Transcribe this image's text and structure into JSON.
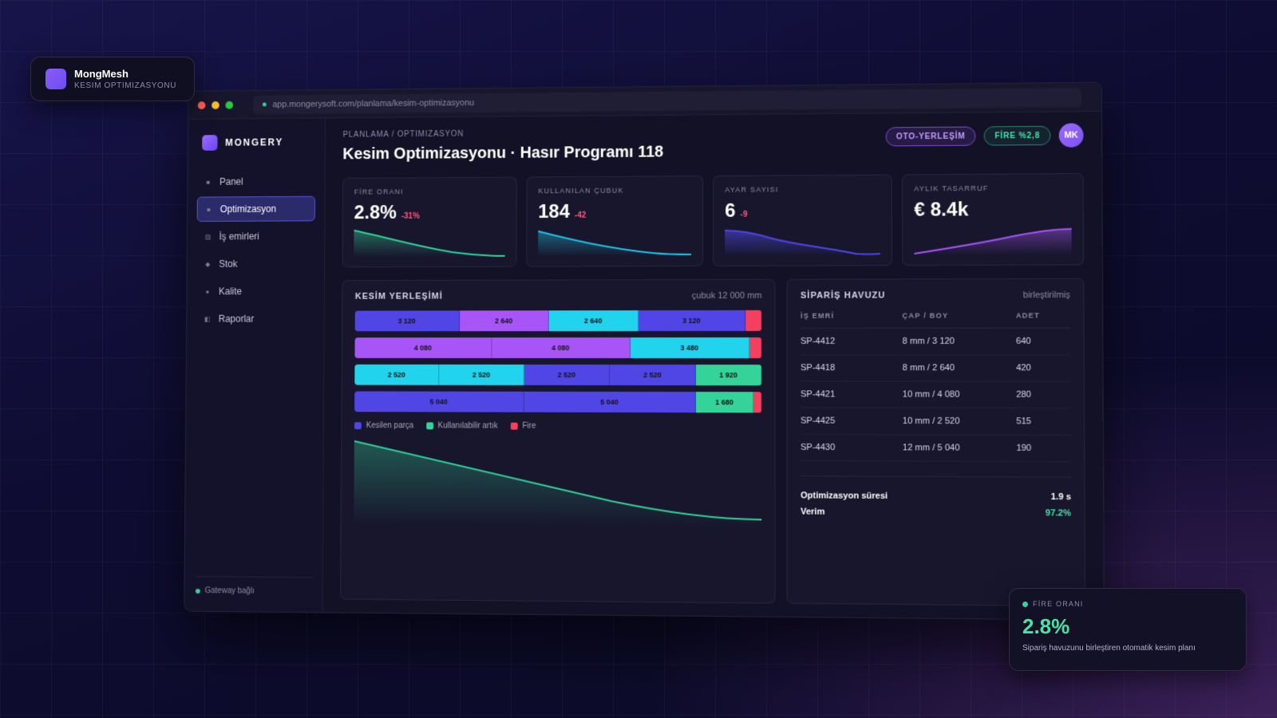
{
  "brand": {
    "name": "MongMesh",
    "subtitle": "KESIM OPTIMIZASYONU"
  },
  "window": {
    "url": "app.mongerysoft.com/planlama/kesim-optimizasyonu"
  },
  "sidebar": {
    "logo": "MONGERY",
    "items": [
      {
        "label": "Panel",
        "icon": "square-icon",
        "active": false
      },
      {
        "label": "Optimizasyon",
        "icon": "square-icon",
        "active": true
      },
      {
        "label": "İş emirleri",
        "icon": "list-icon",
        "active": false
      },
      {
        "label": "Stok",
        "icon": "diamond-icon",
        "active": false
      },
      {
        "label": "Kalite",
        "icon": "circle-icon",
        "active": false
      },
      {
        "label": "Raporlar",
        "icon": "report-icon",
        "active": false
      }
    ],
    "gateway": "Gateway bağlı"
  },
  "header": {
    "breadcrumb": [
      "PLANLAMA",
      "/",
      "OPTIMIZASYON"
    ],
    "title": "Kesim Optimizasyonu · Hasır Programı 118",
    "pill_auto": "OTO-YERLEŞİM",
    "pill_fire": "FİRE %2,8",
    "avatar": "MK"
  },
  "kpis": [
    {
      "label": "FİRE ORANI",
      "value": "2.8%",
      "delta": "-31%",
      "color": "#34d399"
    },
    {
      "label": "KULLANILAN ÇUBUK",
      "value": "184",
      "delta": "-42",
      "color": "#22c3e6"
    },
    {
      "label": "AYAR SAYISI",
      "value": "6",
      "delta": "-9",
      "color": "#5046e5"
    },
    {
      "label": "AYLIK TASARRUF",
      "value": "€ 8.4k",
      "delta": "",
      "color": "#a855f7"
    }
  ],
  "placement": {
    "title": "KESİM YERLEŞİMİ",
    "stock": "çubuk 12 000 mm",
    "rows": [
      [
        {
          "v": "3 120",
          "w": 3120,
          "c": "#4f46e5"
        },
        {
          "v": "2 640",
          "w": 2640,
          "c": "#a855f7"
        },
        {
          "v": "2 640",
          "w": 2640,
          "c": "#22d3ee"
        },
        {
          "v": "3 120",
          "w": 3120,
          "c": "#4f46e5"
        },
        {
          "v": "",
          "w": 480,
          "c": "#f43f5e"
        }
      ],
      [
        {
          "v": "4 080",
          "w": 4080,
          "c": "#a855f7"
        },
        {
          "v": "4 080",
          "w": 4080,
          "c": "#a855f7"
        },
        {
          "v": "3 480",
          "w": 3480,
          "c": "#22d3ee"
        },
        {
          "v": "",
          "w": 360,
          "c": "#f43f5e"
        }
      ],
      [
        {
          "v": "2 520",
          "w": 2520,
          "c": "#22d3ee"
        },
        {
          "v": "2 520",
          "w": 2520,
          "c": "#22d3ee"
        },
        {
          "v": "2 520",
          "w": 2520,
          "c": "#4f46e5"
        },
        {
          "v": "2 520",
          "w": 2520,
          "c": "#4f46e5"
        },
        {
          "v": "1 920",
          "w": 1920,
          "c": "#34d399"
        }
      ],
      [
        {
          "v": "5 040",
          "w": 5040,
          "c": "#4f46e5"
        },
        {
          "v": "5 040",
          "w": 5040,
          "c": "#4f46e5"
        },
        {
          "v": "1 680",
          "w": 1680,
          "c": "#34d399"
        },
        {
          "v": "",
          "w": 240,
          "c": "#f43f5e"
        }
      ]
    ],
    "legend": [
      {
        "label": "Kesilen parça",
        "color": "#4f46e5"
      },
      {
        "label": "Kullanılabilir artık",
        "color": "#34d399"
      },
      {
        "label": "Fire",
        "color": "#f43f5e"
      }
    ]
  },
  "orders": {
    "title": "SİPARİŞ HAVUZU",
    "status": "birleştirilmiş",
    "columns": [
      "İŞ EMRİ",
      "ÇAP / BOY",
      "ADET"
    ],
    "rows": [
      [
        "SP-4412",
        "8 mm / 3 120",
        "640"
      ],
      [
        "SP-4418",
        "8 mm / 2 640",
        "420"
      ],
      [
        "SP-4421",
        "10 mm / 4 080",
        "280"
      ],
      [
        "SP-4425",
        "10 mm / 2 520",
        "515"
      ],
      [
        "SP-4430",
        "12 mm / 5 040",
        "190"
      ]
    ],
    "summary": [
      {
        "label": "Optimizasyon süresi",
        "value": "1.9 s"
      },
      {
        "label": "Verim",
        "value": "97.2%"
      }
    ]
  },
  "fire_card": {
    "label": "FİRE ORANI",
    "value": "2.8%",
    "description": "Sipariş havuzunu birleştiren otomatik kesim planı"
  }
}
